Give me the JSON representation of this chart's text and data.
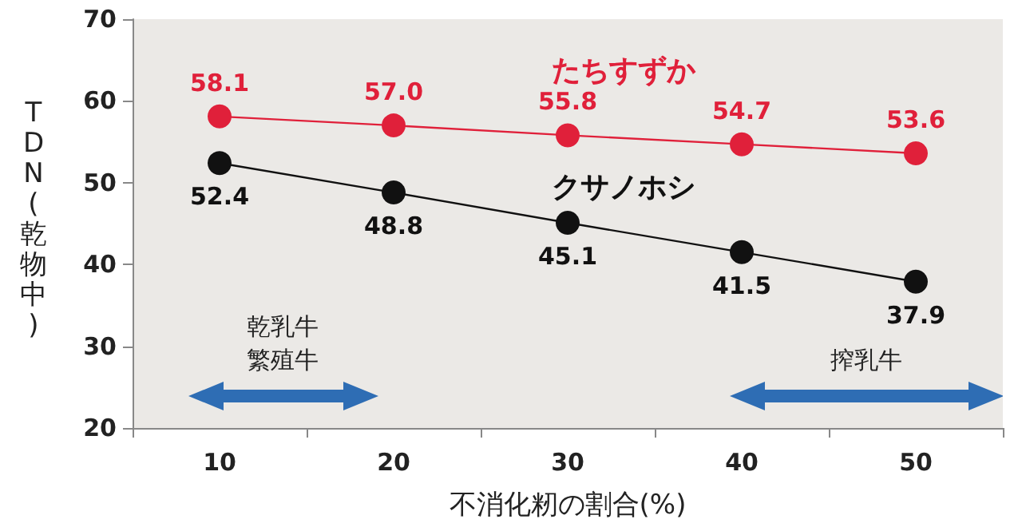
{
  "chart_data": {
    "type": "line",
    "xlabel": "不消化籾の割合(%)",
    "ylabel": "TDN(乾物中)",
    "categories": [
      "10",
      "20",
      "30",
      "40",
      "50"
    ],
    "series": [
      {
        "name": "たちすずか",
        "color": "#e0203a",
        "values": [
          58.1,
          57.0,
          55.8,
          54.7,
          53.6
        ],
        "value_labels": [
          "58.1",
          "57.0",
          "55.8",
          "54.7",
          "53.6"
        ]
      },
      {
        "name": "クサノホシ",
        "color": "#111111",
        "values": [
          52.4,
          48.8,
          45.1,
          41.5,
          37.9
        ],
        "value_labels": [
          "52.4",
          "48.8",
          "45.1",
          "41.5",
          "37.9"
        ]
      }
    ],
    "ylim": [
      20,
      70
    ],
    "yticks": [
      20,
      30,
      40,
      50,
      60,
      70
    ],
    "grid": false,
    "legend": false,
    "marker": "circle",
    "line_style": "solid",
    "annotations": [
      "乾乳牛",
      "繁殖牛",
      "搾乳牛"
    ]
  }
}
